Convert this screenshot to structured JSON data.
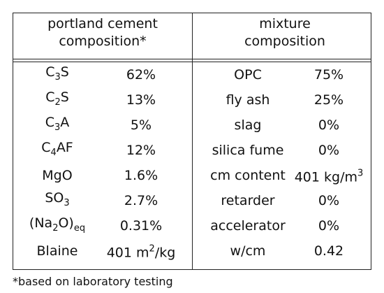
{
  "header": {
    "left": "portland cement composition*",
    "right": "mixture composition"
  },
  "cement": [
    {
      "name": [
        "C",
        {
          "sub": "3"
        },
        "S"
      ],
      "value": [
        "62%"
      ]
    },
    {
      "name": [
        "C",
        {
          "sub": "2"
        },
        "S"
      ],
      "value": [
        "13%"
      ]
    },
    {
      "name": [
        "C",
        {
          "sub": "3"
        },
        "A"
      ],
      "value": [
        "5%"
      ]
    },
    {
      "name": [
        "C",
        {
          "sub": "4"
        },
        "AF"
      ],
      "value": [
        "12%"
      ]
    },
    {
      "name": [
        "MgO"
      ],
      "value": [
        "1.6%"
      ]
    },
    {
      "name": [
        "SO",
        {
          "sub": "3"
        }
      ],
      "value": [
        "2.7%"
      ]
    },
    {
      "name": [
        "(Na",
        {
          "sub": "2"
        },
        "O)",
        {
          "sub": "eq"
        }
      ],
      "value": [
        "0.31%"
      ]
    },
    {
      "name": [
        "Blaine"
      ],
      "value": [
        "401 m",
        {
          "sup": "2"
        },
        "/kg"
      ]
    }
  ],
  "mixture": [
    {
      "name": [
        "OPC"
      ],
      "value": [
        "75%"
      ]
    },
    {
      "name": [
        "fly ash"
      ],
      "value": [
        "25%"
      ]
    },
    {
      "name": [
        "slag"
      ],
      "value": [
        "0%"
      ]
    },
    {
      "name": [
        "silica fume"
      ],
      "value": [
        "0%"
      ]
    },
    {
      "name": [
        "cm content"
      ],
      "value": [
        "401 kg/m",
        {
          "sup": "3"
        }
      ]
    },
    {
      "name": [
        "retarder"
      ],
      "value": [
        "0%"
      ]
    },
    {
      "name": [
        "accelerator"
      ],
      "value": [
        "0%"
      ]
    },
    {
      "name": [
        "w/cm"
      ],
      "value": [
        "0.42"
      ]
    }
  ],
  "footnote": "*based on laboratory testing"
}
